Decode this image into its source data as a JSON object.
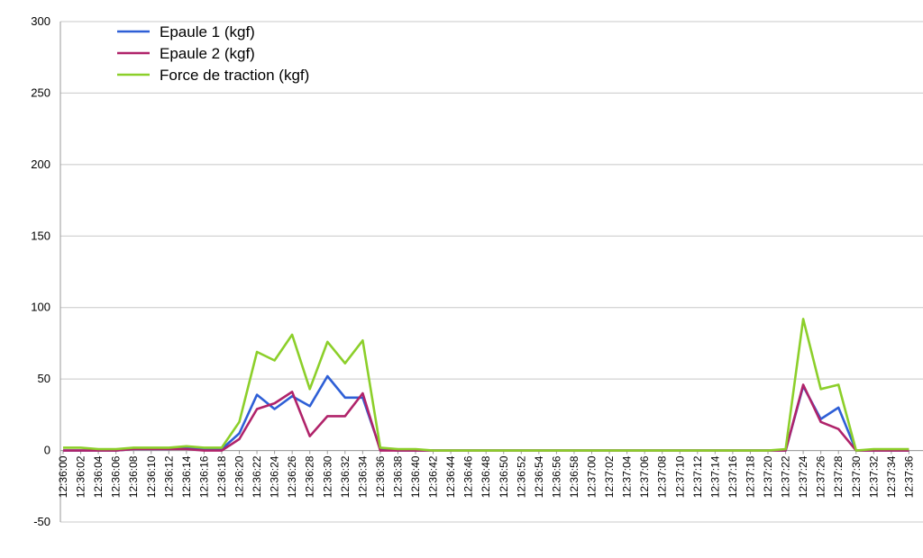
{
  "chart_data": {
    "type": "line",
    "title": "",
    "xlabel": "",
    "ylabel": "",
    "ylim": [
      -50,
      300
    ],
    "yticks": [
      -50,
      0,
      50,
      100,
      150,
      200,
      250,
      300
    ],
    "grid": true,
    "legend_position": "top-left",
    "x": [
      "12:36:00",
      "12:36:02",
      "12:36:04",
      "12:36:06",
      "12:36:08",
      "12:36:10",
      "12:36:12",
      "12:36:14",
      "12:36:16",
      "12:36:18",
      "12:36:20",
      "12:36:22",
      "12:36:24",
      "12:36:26",
      "12:36:28",
      "12:36:30",
      "12:36:32",
      "12:36:34",
      "12:36:36",
      "12:36:38",
      "12:36:40",
      "12:36:42",
      "12:36:44",
      "12:36:46",
      "12:36:48",
      "12:36:50",
      "12:36:52",
      "12:36:54",
      "12:36:56",
      "12:36:58",
      "12:37:00",
      "12:37:02",
      "12:37:04",
      "12:37:06",
      "12:37:08",
      "12:37:10",
      "12:37:12",
      "12:37:14",
      "12:37:16",
      "12:37:18",
      "12:37:20",
      "12:37:22",
      "12:37:24",
      "12:37:26",
      "12:37:28",
      "12:37:30",
      "12:37:32",
      "12:37:34",
      "12:37:36"
    ],
    "series": [
      {
        "name": "Epaule 1 (kgf)",
        "color": "#2e5fd6",
        "values": [
          0,
          0,
          0,
          0,
          1,
          1,
          1,
          2,
          1,
          1,
          12,
          39,
          29,
          38,
          31,
          52,
          37,
          37,
          1,
          0,
          0,
          0,
          0,
          0,
          0,
          0,
          0,
          0,
          0,
          0,
          0,
          0,
          0,
          0,
          0,
          0,
          0,
          0,
          0,
          0,
          0,
          0,
          45,
          22,
          30,
          0,
          0,
          0,
          0
        ]
      },
      {
        "name": "Epaule 2 (kgf)",
        "color": "#b0236a",
        "values": [
          0,
          0,
          0,
          0,
          1,
          1,
          1,
          1,
          0,
          0,
          8,
          29,
          33,
          41,
          10,
          24,
          24,
          40,
          0,
          0,
          0,
          0,
          0,
          0,
          0,
          0,
          0,
          0,
          0,
          0,
          0,
          0,
          0,
          0,
          0,
          0,
          0,
          0,
          0,
          0,
          0,
          0,
          46,
          20,
          15,
          0,
          0,
          0,
          0
        ]
      },
      {
        "name": "Force de traction (kgf)",
        "color": "#8ccf2a",
        "values": [
          2,
          2,
          1,
          1,
          2,
          2,
          2,
          3,
          2,
          2,
          20,
          69,
          63,
          81,
          43,
          76,
          61,
          77,
          2,
          1,
          1,
          0,
          0,
          0,
          0,
          0,
          0,
          0,
          0,
          0,
          0,
          0,
          0,
          0,
          0,
          0,
          0,
          0,
          0,
          0,
          0,
          1,
          92,
          43,
          46,
          0,
          1,
          1,
          1
        ]
      }
    ]
  }
}
